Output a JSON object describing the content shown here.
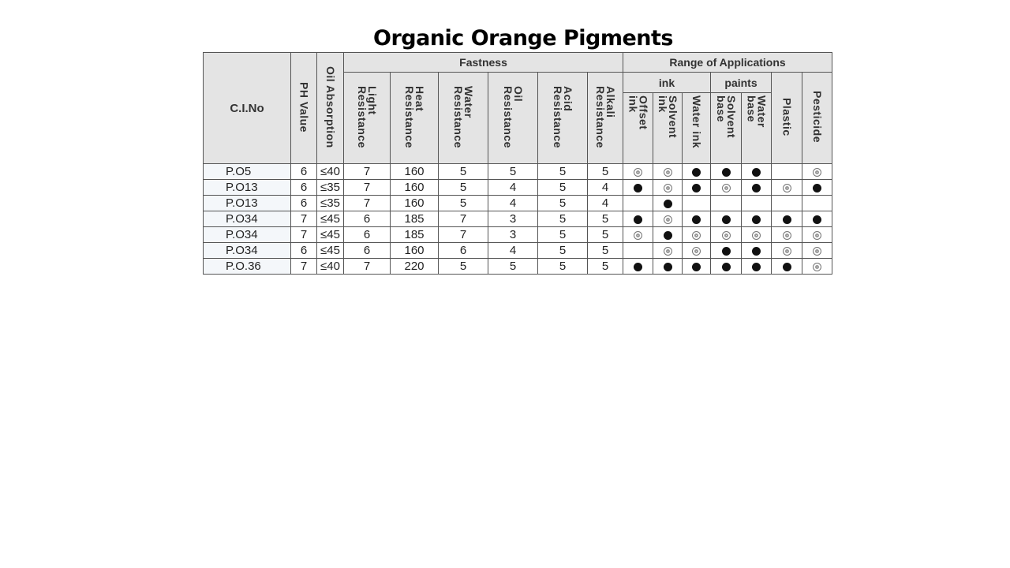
{
  "title": "Organic Orange Pigments",
  "headers": {
    "ci_no": "C.I.No",
    "ph": "PH Value",
    "oil_absorption": "Oil Absorption",
    "fastness": "Fastness",
    "range": "Range of Applications",
    "ink": "ink",
    "paints": "paints",
    "fastness_cols": [
      [
        "Light",
        "Resistance"
      ],
      [
        "Heat",
        "Resistance"
      ],
      [
        "Water",
        "Resistance"
      ],
      [
        "Oil",
        "Resistance"
      ],
      [
        "Acid",
        "Resistance"
      ],
      [
        "Alkali",
        "Resistance"
      ]
    ],
    "ink_cols": [
      [
        "Offset",
        "ink"
      ],
      [
        "Solvent",
        "ink"
      ],
      [
        "Water ink"
      ]
    ],
    "paints_cols": [
      [
        "Solvent",
        "base"
      ],
      [
        "Water",
        "base"
      ]
    ],
    "plastic": "Plastic",
    "pesticide": "Pesticide"
  },
  "legend_marks": {
    "F": "filled circle (suitable)",
    "O": "double circle (partially suitable)",
    "": "not marked"
  },
  "rows": [
    {
      "ci": "P.O5",
      "ph": "6",
      "oil": "≤40",
      "f": [
        "7",
        "160",
        "5",
        "5",
        "5",
        "5"
      ],
      "apps": [
        "O",
        "O",
        "F",
        "F",
        "F",
        "",
        "O"
      ]
    },
    {
      "ci": "P.O13",
      "ph": "6",
      "oil": "≤35",
      "f": [
        "7",
        "160",
        "5",
        "4",
        "5",
        "4"
      ],
      "apps": [
        "F",
        "O",
        "F",
        "O",
        "F",
        "O",
        "F"
      ]
    },
    {
      "ci": "P.O13",
      "ph": "6",
      "oil": "≤35",
      "f": [
        "7",
        "160",
        "5",
        "4",
        "5",
        "4"
      ],
      "apps": [
        "",
        "F",
        "",
        "",
        "",
        "",
        ""
      ]
    },
    {
      "ci": "P.O34",
      "ph": "7",
      "oil": "≤45",
      "f": [
        "6",
        "185",
        "7",
        "3",
        "5",
        "5"
      ],
      "apps": [
        "F",
        "O",
        "F",
        "F",
        "F",
        "F",
        "F"
      ]
    },
    {
      "ci": "P.O34",
      "ph": "7",
      "oil": "≤45",
      "f": [
        "6",
        "185",
        "7",
        "3",
        "5",
        "5"
      ],
      "apps": [
        "O",
        "F",
        "O",
        "O",
        "O",
        "O",
        "O"
      ]
    },
    {
      "ci": "P.O34",
      "ph": "6",
      "oil": "≤45",
      "f": [
        "6",
        "160",
        "6",
        "4",
        "5",
        "5"
      ],
      "apps": [
        "",
        "O",
        "O",
        "F",
        "F",
        "O",
        "O"
      ]
    },
    {
      "ci": "P.O.36",
      "ph": "7",
      "oil": "≤40",
      "f": [
        "7",
        "220",
        "5",
        "5",
        "5",
        "5"
      ],
      "apps": [
        "F",
        "F",
        "F",
        "F",
        "F",
        "F",
        "O"
      ]
    }
  ]
}
